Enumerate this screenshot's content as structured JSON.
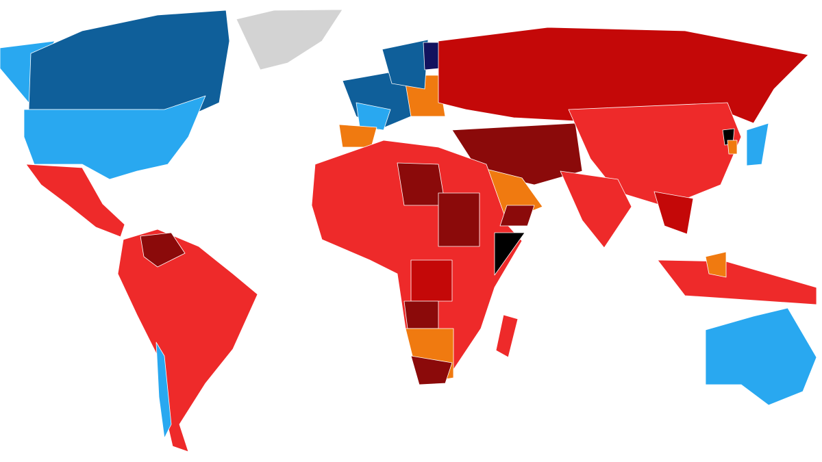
{
  "map": {
    "palette": [
      "#29a8f0",
      "#0f5f9a",
      "#d3d3d3",
      "#ee2a2a",
      "#c40808",
      "#8b0a0a",
      "#f07a10",
      "#000000",
      "#12125e"
    ]
  }
}
